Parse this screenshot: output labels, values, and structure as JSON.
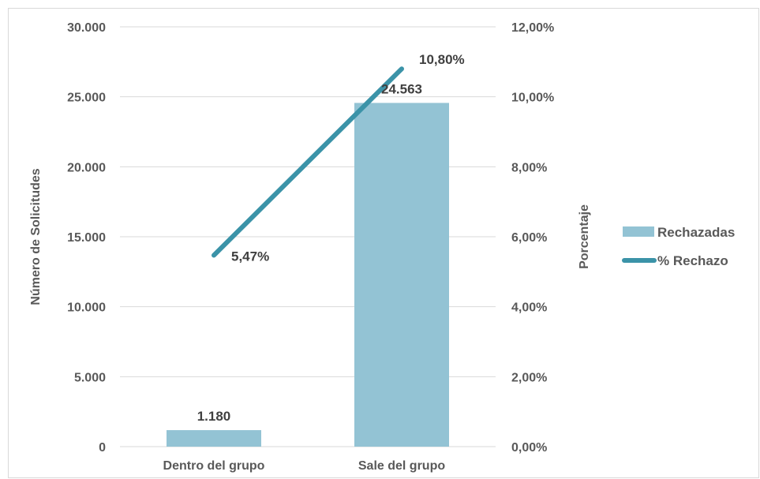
{
  "chart_data": {
    "type": "bar+line",
    "categories": [
      "Dentro del grupo",
      "Sale del grupo"
    ],
    "series": [
      {
        "name": "Rechazadas",
        "type": "bar",
        "axis": "left",
        "values": [
          1180,
          24563
        ],
        "labels": [
          "1.180",
          "24.563"
        ],
        "color": "#93c3d4"
      },
      {
        "name": "% Rechazo",
        "type": "line",
        "axis": "right",
        "values": [
          5.47,
          10.8
        ],
        "labels": [
          "5,47%",
          "10,80%"
        ],
        "color": "#3b93a8"
      }
    ],
    "ylabel": "Número de Solicitudes",
    "y2label": "Porcentaje",
    "ylim": [
      0,
      30000
    ],
    "y2lim": [
      0,
      12
    ],
    "yticks": [
      "0",
      "5.000",
      "10.000",
      "15.000",
      "20.000",
      "25.000",
      "30.000"
    ],
    "y2ticks": [
      "0,00%",
      "2,00%",
      "4,00%",
      "6,00%",
      "8,00%",
      "10,00%",
      "12,00%"
    ],
    "grid": true,
    "legend_position": "right"
  }
}
